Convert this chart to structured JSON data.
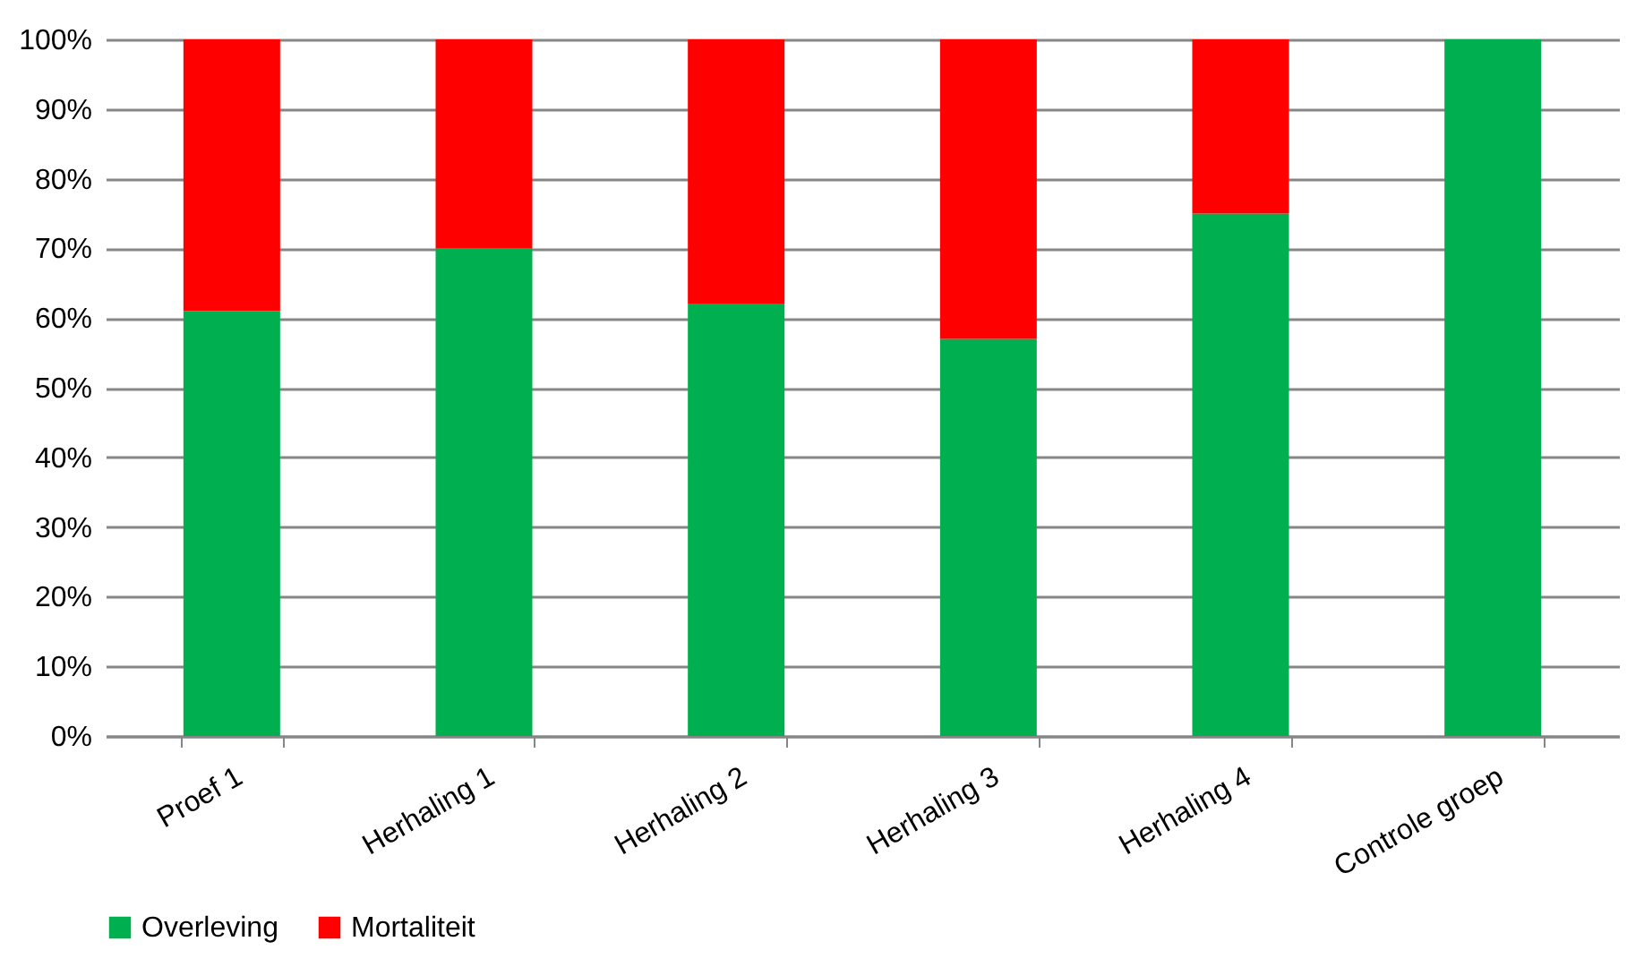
{
  "chart_data": {
    "type": "bar",
    "stacked": true,
    "categories": [
      "Proef 1",
      "Herhaling 1",
      "Herhaling 2",
      "Herhaling 3",
      "Herhaling 4",
      "Controle groep"
    ],
    "series": [
      {
        "name": "Overleving",
        "color": "#00b050",
        "values": [
          61,
          70,
          62,
          57,
          75,
          100
        ]
      },
      {
        "name": "Mortaliteit",
        "color": "#ff0000",
        "values": [
          39,
          30,
          38,
          43,
          25,
          0
        ]
      }
    ],
    "ylim": [
      0,
      100
    ],
    "yticks": [
      {
        "value": 0,
        "label": "0%"
      },
      {
        "value": 10,
        "label": "10%"
      },
      {
        "value": 20,
        "label": "20%"
      },
      {
        "value": 30,
        "label": "30%"
      },
      {
        "value": 40,
        "label": "40%"
      },
      {
        "value": 50,
        "label": "50%"
      },
      {
        "value": 60,
        "label": "60%"
      },
      {
        "value": 70,
        "label": "70%"
      },
      {
        "value": 80,
        "label": "80%"
      },
      {
        "value": 90,
        "label": "90%"
      },
      {
        "value": 100,
        "label": "100%"
      }
    ],
    "grid": "y",
    "legend": "bottom"
  }
}
